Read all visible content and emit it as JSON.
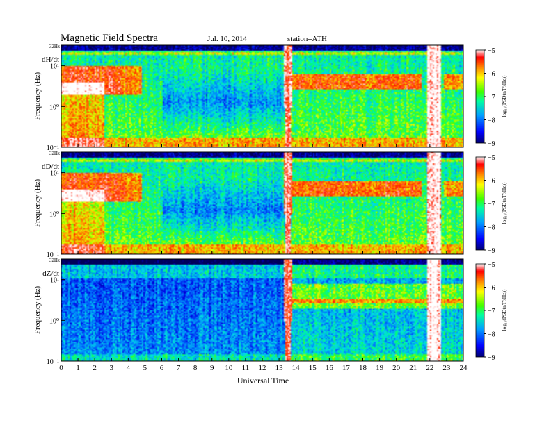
{
  "header": {
    "title": "Magnetic Field Spectra",
    "date": "Jul. 10, 2014",
    "station": "station=ATH"
  },
  "chart_data": [
    {
      "type": "heatmap",
      "panel_label": "dH/dt",
      "ylabel": "Frequency (Hz)",
      "xlabel": "",
      "top_label": "32Hz",
      "y_tick_labels": [
        "10¹",
        "10⁰",
        "10⁻¹"
      ],
      "yscale": "log",
      "ylim": [
        0.1,
        32
      ],
      "xlim": [
        0,
        24
      ],
      "colorbar": {
        "label": "log₁₀(PSD(nT²/Hz))",
        "ticks": [
          -5,
          -6,
          -7,
          -8,
          -9
        ]
      }
    },
    {
      "type": "heatmap",
      "panel_label": "dD/dt",
      "ylabel": "Frequency (Hz)",
      "xlabel": "",
      "top_label": "32Hz",
      "y_tick_labels": [
        "10¹",
        "10⁰",
        "10⁻¹"
      ],
      "yscale": "log",
      "ylim": [
        0.1,
        32
      ],
      "xlim": [
        0,
        24
      ],
      "colorbar": {
        "label": "log₁₀(PSD(nT²/Hz))",
        "ticks": [
          -5,
          -6,
          -7,
          -8,
          -9
        ]
      }
    },
    {
      "type": "heatmap",
      "panel_label": "dZ/dt",
      "ylabel": "Frequency (Hz)",
      "xlabel": "Universal Time",
      "top_label": "32Hz",
      "y_tick_labels": [
        "10¹",
        "10⁰",
        "10⁻¹"
      ],
      "yscale": "log",
      "ylim": [
        0.1,
        32
      ],
      "xlim": [
        0,
        24
      ],
      "x_tick_labels": [
        "0",
        "1",
        "2",
        "3",
        "4",
        "5",
        "6",
        "7",
        "8",
        "9",
        "10",
        "11",
        "12",
        "13",
        "14",
        "15",
        "16",
        "17",
        "18",
        "19",
        "20",
        "21",
        "22",
        "23",
        "24"
      ],
      "colorbar": {
        "label": "log₁₀(PSD(nT²/Hz))",
        "ticks": [
          -5,
          -6,
          -7,
          -8,
          -9
        ]
      }
    }
  ]
}
